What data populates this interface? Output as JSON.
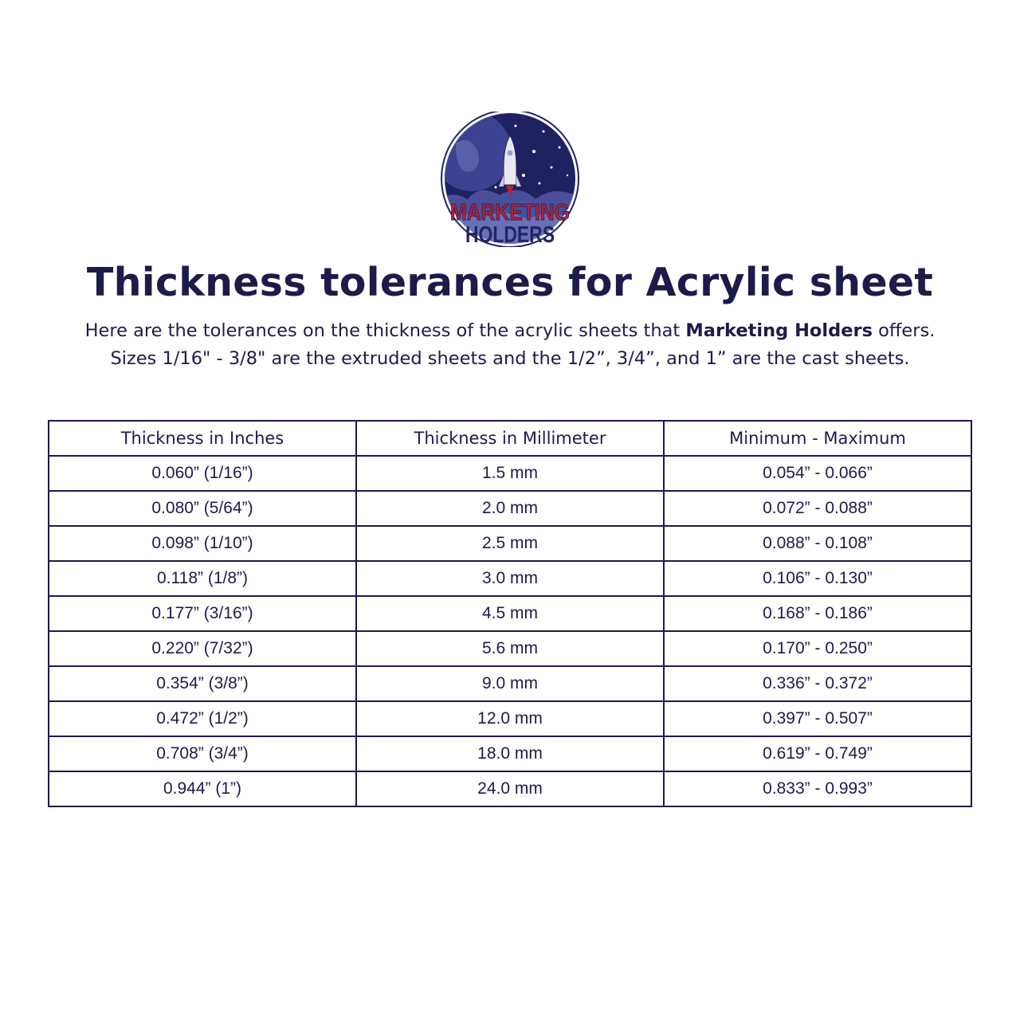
{
  "logo": {
    "line1": "MARKETING",
    "line2": "HOLDERS",
    "colors": {
      "navy": "#232463",
      "red": "#c0202a",
      "sky": "#1f2160"
    }
  },
  "title": "Thickness tolerances for Acrylic sheet",
  "intro": {
    "line1_pre": "Here are the tolerances on the thickness of the acrylic sheets that ",
    "line1_bold": "Marketing Holders",
    "line1_post": " offers.",
    "line2": "Sizes 1/16\" - 3/8\" are the extruded sheets and the 1/2”, 3/4”, and 1” are the cast sheets."
  },
  "table": {
    "headers": [
      "Thickness in Inches",
      "Thickness in Millimeter",
      "Minimum - Maximum"
    ],
    "rows": [
      [
        "0.060” (1/16”)",
        "1.5 mm",
        "0.054” - 0.066”"
      ],
      [
        "0.080” (5/64”)",
        "2.0 mm",
        "0.072” - 0.088”"
      ],
      [
        "0.098” (1/10”)",
        "2.5 mm",
        "0.088” - 0.108”"
      ],
      [
        "0.118” (1/8”)",
        "3.0 mm",
        "0.106” - 0.130”"
      ],
      [
        "0.177” (3/16”)",
        "4.5 mm",
        "0.168” - 0.186”"
      ],
      [
        "0.220” (7/32”)",
        "5.6 mm",
        "0.170” - 0.250”"
      ],
      [
        "0.354” (3/8”)",
        "9.0 mm",
        "0.336” - 0.372”"
      ],
      [
        "0.472” (1/2”)",
        "12.0 mm",
        "0.397” - 0.507”"
      ],
      [
        "0.708” (3/4”)",
        "18.0 mm",
        "0.619” - 0.749”"
      ],
      [
        "0.944” (1”)",
        "24.0 mm",
        "0.833” - 0.993”"
      ]
    ]
  }
}
